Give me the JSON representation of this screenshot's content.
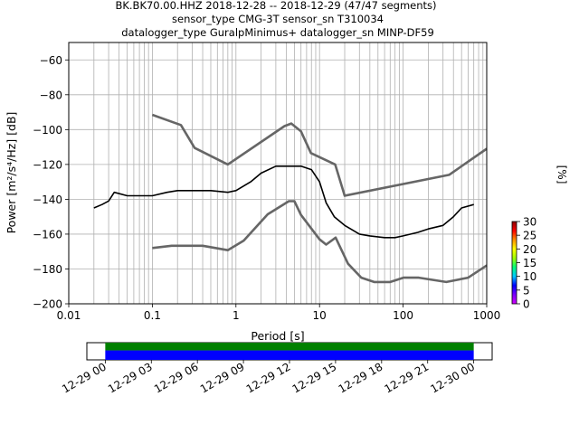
{
  "title": {
    "line1": "BK.BK70.00.HHZ   2018-12-28 -- 2018-12-29  (47/47 segments)",
    "line2": "sensor_type CMG-3T sensor_sn T310034",
    "line3": "datalogger_type GuralpMinimus+ datalogger_sn MINP-DF59"
  },
  "colors": {
    "model_curve": "#666666",
    "mean_curve": "#000000",
    "timeline_upper": "#008000",
    "timeline_lower": "#0000ff"
  },
  "chart_data": [
    {
      "type": "heatmap",
      "title": "BK.BK70.00.HHZ   2018-12-28 -- 2018-12-29  (47/47 segments)",
      "xlabel": "Period [s]",
      "ylabel": "Power [m²/s⁴/Hz] [dB]",
      "xscale": "log",
      "xlim": [
        0.01,
        1000
      ],
      "ylim": [
        -200,
        -50
      ],
      "xticks": [
        0.01,
        0.1,
        1,
        10,
        100,
        1000
      ],
      "xtick_labels": [
        "0.01",
        "0.1",
        "1",
        "10",
        "100",
        "1000"
      ],
      "yticks": [
        -200,
        -180,
        -160,
        -140,
        -120,
        -100,
        -80,
        -60
      ],
      "ytick_labels": [
        "−200",
        "−180",
        "−160",
        "−140",
        "−120",
        "−100",
        "−80",
        "−60"
      ],
      "grid": true,
      "colorbar": {
        "label": "[%]",
        "range": [
          0,
          30
        ],
        "ticks": [
          0,
          5,
          10,
          15,
          20,
          25,
          30
        ],
        "colors": [
          "#ffffff",
          "#d400ff",
          "#7a00ff",
          "#0000ff",
          "#00c8ff",
          "#00ff7a",
          "#a0ff00",
          "#ffff00",
          "#ff9000",
          "#ff0000",
          "#8b0000"
        ]
      },
      "series": [
        {
          "role": "noise-model-high",
          "x": [
            0.1,
            0.22,
            0.32,
            0.8,
            3.8,
            4.6,
            6.0,
            7.9,
            15.4,
            20,
            354.8,
            1000
          ],
          "y": [
            -91.5,
            -97.4,
            -110.5,
            -120.0,
            -98.0,
            -96.5,
            -101.0,
            -113.5,
            -120.0,
            -138.0,
            -126.0,
            -111.0
          ]
        },
        {
          "role": "noise-model-low",
          "x": [
            0.1,
            0.17,
            0.4,
            0.8,
            1.24,
            2.4,
            4.3,
            5.0,
            6.0,
            10.0,
            12.0,
            15.6,
            21.9,
            31.6,
            45.0,
            70.0,
            101.0,
            154.0,
            328.0,
            600.0,
            1000.0
          ],
          "y": [
            -168.0,
            -166.7,
            -166.7,
            -169.2,
            -163.7,
            -148.6,
            -141.1,
            -141.1,
            -149.0,
            -163.0,
            -166.0,
            -162.0,
            -177.0,
            -185.0,
            -187.5,
            -187.5,
            -185.0,
            -185.0,
            -187.5,
            -185.0,
            -178.0
          ]
        },
        {
          "role": "mean",
          "x": [
            0.02,
            0.025,
            0.03,
            0.035,
            0.05,
            0.07,
            0.1,
            0.15,
            0.2,
            0.3,
            0.5,
            0.8,
            1.0,
            1.5,
            2.0,
            3.0,
            4.0,
            5.0,
            6.0,
            8.0,
            10.0,
            12.0,
            15.0,
            20.0,
            30.0,
            40.0,
            60.0,
            80.0,
            100.0,
            150.0,
            200.0,
            300.0,
            400.0,
            500.0,
            700.0
          ],
          "y": [
            -145,
            -143,
            -141,
            -136,
            -138,
            -138,
            -138,
            -136,
            -135,
            -135,
            -135,
            -136,
            -135,
            -130,
            -125,
            -121,
            -121,
            -121,
            -121,
            -123,
            -130,
            -142,
            -150,
            -155,
            -160,
            -161,
            -162,
            -162,
            -161,
            -159,
            -157,
            -155,
            -150,
            -145,
            -143
          ]
        }
      ],
      "distribution_bands": [
        {
          "x": [
            0.02,
            0.03,
            0.05,
            0.1,
            0.2,
            0.5,
            0.8
          ],
          "y_low": [
            -146,
            -142,
            -140,
            -140,
            -140,
            -139,
            -139
          ],
          "y_high": [
            -143,
            -134,
            -133,
            -132,
            -131,
            -133,
            -134
          ],
          "y_mode": [
            -145,
            -137,
            -138,
            -138,
            -136,
            -136,
            -137
          ]
        },
        {
          "x": [
            0.8,
            1.0,
            1.5,
            2.0,
            3.0,
            5.0,
            8.0,
            10.0
          ],
          "y_low": [
            -139,
            -137,
            -133,
            -128,
            -124,
            -124,
            -127,
            -135
          ],
          "y_high": [
            -134,
            -132,
            -127,
            -122,
            -119,
            -118,
            -119,
            -122
          ],
          "y_mode": [
            -137,
            -135,
            -130,
            -125,
            -121,
            -121,
            -123,
            -130
          ]
        },
        {
          "x": [
            10.0,
            15.0,
            20.0,
            30.0,
            50.0,
            70.0,
            100.0,
            150.0,
            200.0,
            300.0,
            400.0,
            500.0,
            700.0
          ],
          "y_low": [
            -138,
            -160,
            -168,
            -174,
            -172,
            -170,
            -168,
            -165,
            -164,
            -160,
            -157,
            -155,
            -150
          ],
          "y_high": [
            -120,
            -118,
            -112,
            -110,
            -118,
            -130,
            -140,
            -150,
            -152,
            -148,
            -145,
            -142,
            -140
          ],
          "y_mode": [
            -130,
            -150,
            -158,
            -163,
            -166,
            -165,
            -162,
            -160,
            -157,
            -155,
            -150,
            -145,
            -143
          ]
        }
      ]
    },
    {
      "type": "timeline",
      "ticks": [
        "12-29 00",
        "12-29 03",
        "12-29 06",
        "12-29 09",
        "12-29 12",
        "12-29 15",
        "12-29 18",
        "12-29 21",
        "12-30 00"
      ],
      "bands": [
        {
          "name": "",
          "start_hour": 0,
          "end_hour": 24,
          "color": "#008000"
        },
        {
          "name": "",
          "start_hour": 0,
          "end_hour": 24,
          "color": "#0000ff"
        }
      ],
      "xlim_hours": [
        -1.2,
        25.2
      ]
    }
  ]
}
